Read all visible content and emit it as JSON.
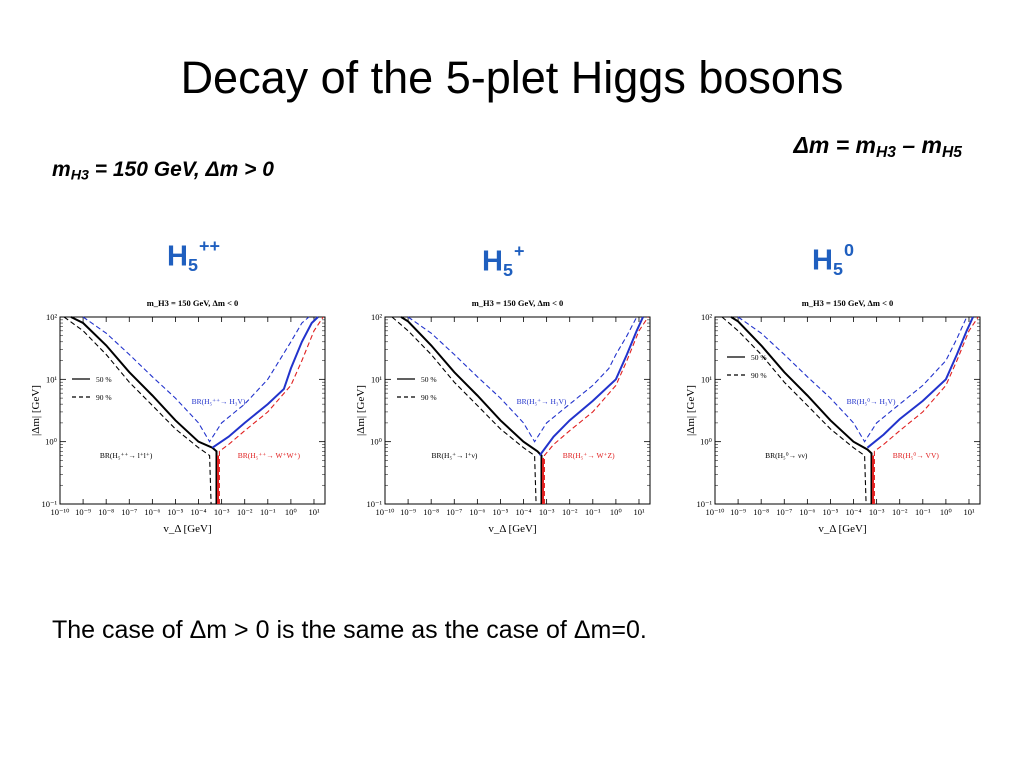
{
  "slide": {
    "title": "Decay of the 5-plet Higgs bosons",
    "definition": {
      "lhs": "Δm = m",
      "sub1": "H3",
      "mid": " – m",
      "sub2": "H5"
    },
    "condition": {
      "m": "m",
      "sub": "H3",
      "rest": " = 150 GeV, Δm > 0"
    },
    "caption": "The case of Δm > 0 is the same as the case of Δm=0."
  },
  "panel_labels": [
    {
      "base": "H",
      "sub": "5",
      "sup": "++"
    },
    {
      "base": "H",
      "sub": "5",
      "sup": "+"
    },
    {
      "base": "H",
      "sub": "5",
      "sup": "0"
    }
  ],
  "colors": {
    "title_blue": "#1f5fbf",
    "black": "#000000",
    "blue": "#2233cc",
    "red": "#e02020"
  },
  "chart_data": [
    {
      "type": "line",
      "title": "m_H3 = 150 GeV, Δm < 0",
      "xlabel": "v_Δ [GeV]",
      "ylabel": "|Δm| [GeV]",
      "xscale": "log",
      "yscale": "log",
      "xlim": [
        1e-10,
        30
      ],
      "ylim": [
        0.1,
        100
      ],
      "xticks": [
        "10⁻¹⁰",
        "10⁻⁹",
        "10⁻⁸",
        "10⁻⁷",
        "10⁻⁶",
        "10⁻⁵",
        "10⁻⁴",
        "10⁻³",
        "10⁻²",
        "10⁻¹",
        "10⁰",
        "10¹"
      ],
      "yticks": [
        "10⁻¹",
        "10⁰",
        "10¹",
        "10²"
      ],
      "legend": {
        "solid": "50 %",
        "dashed": "90 %",
        "placement": "left"
      },
      "annotations": [
        {
          "text": "BR(H₅⁺⁺→ H₃V)",
          "color": "#2233cc",
          "at": [
            5e-05,
            4
          ]
        },
        {
          "text": "BR(H₅⁺⁺→ l⁺l⁺)",
          "color": "#000000",
          "at": [
            1e-06,
            0.55
          ]
        },
        {
          "text": "BR(H₅⁺⁺→ W⁺W⁺)",
          "color": "#e02020",
          "at": [
            0.005,
            0.55
          ]
        }
      ],
      "series": [
        {
          "color": "#000000",
          "style": "solid",
          "values": [
            [
              3e-10,
              100
            ],
            [
              1e-09,
              80
            ],
            [
              1e-08,
              35
            ],
            [
              1e-07,
              13
            ],
            [
              1e-06,
              5.5
            ],
            [
              1e-05,
              2.2
            ],
            [
              0.0001,
              1.0
            ],
            [
              0.0004,
              0.8
            ],
            [
              0.0006,
              0.7
            ],
            [
              0.0006,
              0.1
            ]
          ]
        },
        {
          "color": "#000000",
          "style": "dashed",
          "values": [
            [
              1.5e-10,
              100
            ],
            [
              1e-09,
              60
            ],
            [
              1e-08,
              25
            ],
            [
              1e-07,
              9
            ],
            [
              1e-06,
              3.8
            ],
            [
              1e-05,
              1.6
            ],
            [
              0.0001,
              0.8
            ],
            [
              0.0003,
              0.6
            ],
            [
              0.00035,
              0.1
            ]
          ]
        },
        {
          "color": "#2233cc",
          "style": "solid",
          "values": [
            [
              0.0004,
              0.8
            ],
            [
              0.002,
              1.2
            ],
            [
              0.01,
              2.0
            ],
            [
              0.1,
              4.0
            ],
            [
              0.5,
              7.0
            ],
            [
              1,
              15
            ],
            [
              3,
              40
            ],
            [
              8,
              80
            ],
            [
              15,
              100
            ]
          ]
        },
        {
          "color": "#2233cc",
          "style": "dashed",
          "values": [
            [
              1e-09,
              100
            ],
            [
              1e-08,
              55
            ],
            [
              1e-07,
              25
            ],
            [
              1e-06,
              11
            ],
            [
              1e-05,
              5
            ],
            [
              0.0001,
              2
            ],
            [
              0.0003,
              1.0
            ],
            [
              0.001,
              2
            ],
            [
              0.01,
              4
            ],
            [
              0.1,
              10
            ],
            [
              1,
              40
            ],
            [
              3,
              80
            ],
            [
              6,
              100
            ]
          ]
        },
        {
          "color": "#e02020",
          "style": "dashed",
          "values": [
            [
              0.0008,
              0.1
            ],
            [
              0.0008,
              0.7
            ],
            [
              0.002,
              0.9
            ],
            [
              0.01,
              1.5
            ],
            [
              0.1,
              3
            ],
            [
              1,
              8
            ],
            [
              3,
              20
            ],
            [
              10,
              60
            ],
            [
              25,
              100
            ]
          ]
        },
        {
          "color": "#e02020",
          "style": "solid",
          "values": [
            [
              0.0007,
              0.1
            ],
            [
              0.0007,
              0.6
            ]
          ]
        }
      ]
    },
    {
      "type": "line",
      "title": "m_H3 = 150 GeV, Δm < 0",
      "xlabel": "v_Δ [GeV]",
      "ylabel": "|Δm| [GeV]",
      "xscale": "log",
      "yscale": "log",
      "xlim": [
        1e-10,
        30
      ],
      "ylim": [
        0.1,
        100
      ],
      "xticks": [
        "10⁻¹⁰",
        "10⁻⁹",
        "10⁻⁸",
        "10⁻⁷",
        "10⁻⁶",
        "10⁻⁵",
        "10⁻⁴",
        "10⁻³",
        "10⁻²",
        "10⁻¹",
        "10⁰",
        "10¹"
      ],
      "yticks": [
        "10⁻¹",
        "10⁰",
        "10¹",
        "10²"
      ],
      "legend": {
        "solid": "50 %",
        "dashed": "90 %",
        "placement": "left"
      },
      "annotations": [
        {
          "text": "BR(H₅⁺→ H₃V)",
          "color": "#2233cc",
          "at": [
            5e-05,
            4
          ]
        },
        {
          "text": "BR(H₅⁺→ l⁺ν)",
          "color": "#000000",
          "at": [
            1e-06,
            0.55
          ]
        },
        {
          "text": "BR(H₅⁺→ W⁺Z)",
          "color": "#e02020",
          "at": [
            0.005,
            0.55
          ]
        }
      ],
      "series": [
        {
          "color": "#000000",
          "style": "solid",
          "values": [
            [
              5e-10,
              100
            ],
            [
              1e-09,
              85
            ],
            [
              1e-08,
              35
            ],
            [
              1e-07,
              13
            ],
            [
              1e-06,
              5.5
            ],
            [
              1e-05,
              2.2
            ],
            [
              0.0001,
              1.0
            ],
            [
              0.0004,
              0.7
            ],
            [
              0.0006,
              0.6
            ],
            [
              0.0006,
              0.1
            ]
          ]
        },
        {
          "color": "#000000",
          "style": "dashed",
          "values": [
            [
              2e-10,
              100
            ],
            [
              1e-09,
              60
            ],
            [
              1e-08,
              25
            ],
            [
              1e-07,
              9
            ],
            [
              1e-06,
              3.8
            ],
            [
              1e-05,
              1.6
            ],
            [
              0.0001,
              0.8
            ],
            [
              0.0003,
              0.6
            ],
            [
              0.00035,
              0.1
            ]
          ]
        },
        {
          "color": "#2233cc",
          "style": "solid",
          "values": [
            [
              0.0005,
              0.6
            ],
            [
              0.002,
              1.2
            ],
            [
              0.01,
              2.2
            ],
            [
              0.1,
              4.5
            ],
            [
              1,
              10
            ],
            [
              3,
              25
            ],
            [
              8,
              60
            ],
            [
              15,
              100
            ]
          ]
        },
        {
          "color": "#2233cc",
          "style": "dashed",
          "values": [
            [
              1e-09,
              100
            ],
            [
              1e-08,
              55
            ],
            [
              1e-07,
              25
            ],
            [
              1e-06,
              11
            ],
            [
              1e-05,
              5
            ],
            [
              0.0001,
              2
            ],
            [
              0.0003,
              1.0
            ],
            [
              0.001,
              2
            ],
            [
              0.01,
              4
            ],
            [
              0.1,
              8
            ],
            [
              0.5,
              15
            ],
            [
              1,
              25
            ],
            [
              3,
              50
            ],
            [
              8,
              100
            ]
          ]
        },
        {
          "color": "#e02020",
          "style": "dashed",
          "values": [
            [
              0.0008,
              0.1
            ],
            [
              0.0008,
              0.6
            ],
            [
              0.002,
              0.9
            ],
            [
              0.01,
              1.5
            ],
            [
              0.1,
              3
            ],
            [
              1,
              8
            ],
            [
              3,
              20
            ],
            [
              10,
              60
            ],
            [
              25,
              100
            ]
          ]
        },
        {
          "color": "#e02020",
          "style": "solid",
          "values": [
            [
              0.0007,
              0.1
            ],
            [
              0.0007,
              0.55
            ]
          ]
        }
      ]
    },
    {
      "type": "line",
      "title": "m_H3 = 150 GeV, Δm < 0",
      "xlabel": "v_Δ [GeV]",
      "ylabel": "|Δm| [GeV]",
      "xscale": "log",
      "yscale": "log",
      "xlim": [
        1e-10,
        30
      ],
      "ylim": [
        0.1,
        100
      ],
      "xticks": [
        "10⁻¹⁰",
        "10⁻⁹",
        "10⁻⁸",
        "10⁻⁷",
        "10⁻⁶",
        "10⁻⁵",
        "10⁻⁴",
        "10⁻³",
        "10⁻²",
        "10⁻¹",
        "10⁰",
        "10¹"
      ],
      "yticks": [
        "10⁻¹",
        "10⁰",
        "10¹",
        "10²"
      ],
      "legend": {
        "solid": "50 %",
        "dashed": "90 %",
        "placement": "top-left"
      },
      "annotations": [
        {
          "text": "BR(H₅⁰→ H₃V)",
          "color": "#2233cc",
          "at": [
            5e-05,
            4
          ]
        },
        {
          "text": "BR(H₅⁰→ νν)",
          "color": "#000000",
          "at": [
            1e-06,
            0.55
          ]
        },
        {
          "text": "BR(H₅⁰→ VV)",
          "color": "#e02020",
          "at": [
            0.005,
            0.55
          ]
        }
      ],
      "series": [
        {
          "color": "#000000",
          "style": "solid",
          "values": [
            [
              5e-10,
              100
            ],
            [
              1e-09,
              85
            ],
            [
              1e-08,
              35
            ],
            [
              1e-07,
              13
            ],
            [
              1e-06,
              5.5
            ],
            [
              1e-05,
              2.2
            ],
            [
              0.0001,
              1.0
            ],
            [
              0.0004,
              0.75
            ],
            [
              0.0006,
              0.65
            ],
            [
              0.0006,
              0.1
            ]
          ]
        },
        {
          "color": "#000000",
          "style": "dashed",
          "values": [
            [
              2e-10,
              100
            ],
            [
              1e-09,
              60
            ],
            [
              1e-08,
              25
            ],
            [
              1e-07,
              9
            ],
            [
              1e-06,
              3.8
            ],
            [
              1e-05,
              1.6
            ],
            [
              0.0001,
              0.8
            ],
            [
              0.0003,
              0.6
            ],
            [
              0.00035,
              0.1
            ]
          ]
        },
        {
          "color": "#2233cc",
          "style": "solid",
          "values": [
            [
              0.0004,
              0.8
            ],
            [
              0.002,
              1.3
            ],
            [
              0.01,
              2.3
            ],
            [
              0.1,
              4.5
            ],
            [
              1,
              10
            ],
            [
              3,
              25
            ],
            [
              8,
              60
            ],
            [
              15,
              100
            ]
          ]
        },
        {
          "color": "#2233cc",
          "style": "dashed",
          "values": [
            [
              1e-09,
              100
            ],
            [
              1e-08,
              55
            ],
            [
              1e-07,
              25
            ],
            [
              1e-06,
              11
            ],
            [
              1e-05,
              5
            ],
            [
              0.0001,
              2
            ],
            [
              0.0003,
              1.0
            ],
            [
              0.001,
              2
            ],
            [
              0.01,
              4
            ],
            [
              0.1,
              8
            ],
            [
              1,
              20
            ],
            [
              3,
              45
            ],
            [
              8,
              100
            ]
          ]
        },
        {
          "color": "#e02020",
          "style": "dashed",
          "values": [
            [
              0.0008,
              0.1
            ],
            [
              0.0008,
              0.7
            ],
            [
              0.002,
              0.9
            ],
            [
              0.01,
              1.5
            ],
            [
              0.1,
              3
            ],
            [
              1,
              8
            ],
            [
              3,
              20
            ],
            [
              10,
              60
            ],
            [
              25,
              100
            ]
          ]
        },
        {
          "color": "#e02020",
          "style": "solid",
          "values": [
            [
              0.0007,
              0.1
            ],
            [
              0.0007,
              0.6
            ]
          ]
        }
      ]
    }
  ]
}
